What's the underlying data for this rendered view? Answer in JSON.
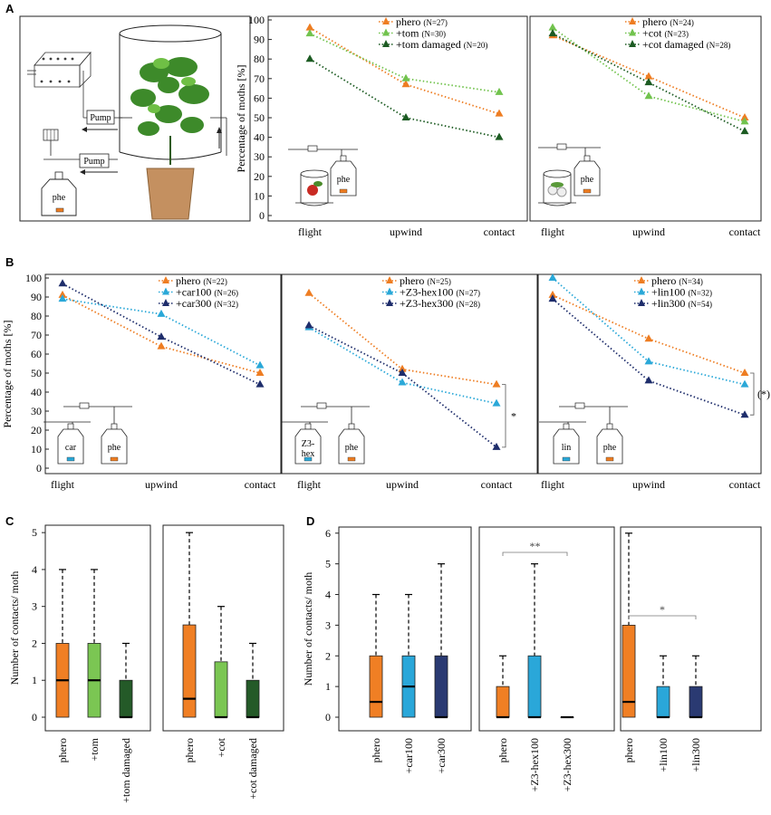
{
  "panel_labels": {
    "a": "A",
    "b": "B",
    "c": "C",
    "d": "D"
  },
  "y_label_percent": "Percentage of moths [%]",
  "y_label_contacts": "Number of contacts/ moth",
  "colors": {
    "orange": "#ee7d22",
    "light_green": "#72c34e",
    "dark_green": "#1c5b22",
    "light_blue": "#2aa8d8",
    "navy": "#1e2d6b",
    "box_orange": "#f07f24",
    "box_lgreen": "#7bc653",
    "box_dgreen": "#245a28",
    "box_lblue": "#2aa7d9",
    "box_navy": "#2a3a72"
  },
  "diagram": {
    "pump1": "Pump",
    "pump2": "Pump",
    "bottle_label": "phe"
  },
  "insets": {
    "phe": "phe",
    "car": "car",
    "z3hex_line1": "Z3-",
    "z3hex_line2": "hex",
    "lin": "lin"
  },
  "chart_data": [
    {
      "id": "A1",
      "type": "line",
      "categories": [
        "flight",
        "upwind",
        "contact"
      ],
      "ylim": [
        0,
        100
      ],
      "ticks": [
        0,
        10,
        20,
        30,
        40,
        50,
        60,
        70,
        80,
        90,
        100
      ],
      "ylabel": "Percentage of moths [%]",
      "series": [
        {
          "name": "phero",
          "n": "(N=27)",
          "color": "#ee7d22",
          "values": [
            96,
            67,
            52
          ]
        },
        {
          "name": "+tom",
          "n": "(N=30)",
          "color": "#72c34e",
          "values": [
            93,
            70,
            63
          ]
        },
        {
          "name": "+tom damaged",
          "n": "(N=20)",
          "color": "#1c5b22",
          "values": [
            80,
            50,
            40
          ]
        }
      ]
    },
    {
      "id": "A2",
      "type": "line",
      "categories": [
        "flight",
        "upwind",
        "contact"
      ],
      "ylim": [
        0,
        100
      ],
      "series": [
        {
          "name": "phero",
          "n": "(N=24)",
          "color": "#ee7d22",
          "values": [
            92,
            71,
            50
          ]
        },
        {
          "name": "+cot",
          "n": "(N=23)",
          "color": "#72c34e",
          "values": [
            96,
            61,
            48
          ]
        },
        {
          "name": "+cot damaged",
          "n": "(N=28)",
          "color": "#1c5b22",
          "values": [
            93,
            68,
            43
          ]
        }
      ]
    },
    {
      "id": "B1",
      "type": "line",
      "categories": [
        "flight",
        "upwind",
        "contact"
      ],
      "ylim": [
        0,
        100
      ],
      "ticks": [
        0,
        10,
        20,
        30,
        40,
        50,
        60,
        70,
        80,
        90,
        100
      ],
      "ylabel": "Percentage of moths [%]",
      "series": [
        {
          "name": "phero",
          "n": "(N=22)",
          "color": "#ee7d22",
          "values": [
            91,
            64,
            50
          ]
        },
        {
          "name": "+car100",
          "n": "(N=26)",
          "color": "#2aa8d8",
          "values": [
            89,
            81,
            54
          ]
        },
        {
          "name": "+car300",
          "n": "(N=32)",
          "color": "#1e2d6b",
          "values": [
            97,
            69,
            44
          ]
        }
      ]
    },
    {
      "id": "B2",
      "type": "line",
      "categories": [
        "flight",
        "upwind",
        "contact"
      ],
      "ylim": [
        0,
        100
      ],
      "annotation": "*",
      "series": [
        {
          "name": "phero",
          "n": "(N=25)",
          "color": "#ee7d22",
          "values": [
            92,
            52,
            44
          ]
        },
        {
          "name": "+Z3-hex100",
          "n": "(N=27)",
          "color": "#2aa8d8",
          "values": [
            74,
            45,
            34
          ]
        },
        {
          "name": "+Z3-hex300",
          "n": "(N=28)",
          "color": "#1e2d6b",
          "values": [
            75,
            50,
            11
          ]
        }
      ]
    },
    {
      "id": "B3",
      "type": "line",
      "categories": [
        "flight",
        "upwind",
        "contact"
      ],
      "ylim": [
        0,
        100
      ],
      "annotation": "(*)",
      "series": [
        {
          "name": "phero",
          "n": "(N=34)",
          "color": "#ee7d22",
          "values": [
            91,
            68,
            50
          ]
        },
        {
          "name": "+lin100",
          "n": "(N=32)",
          "color": "#2aa8d8",
          "values": [
            100,
            56,
            44
          ]
        },
        {
          "name": "+lin300",
          "n": "(N=54)",
          "color": "#1e2d6b",
          "values": [
            89,
            46,
            28
          ]
        }
      ]
    },
    {
      "id": "C1",
      "type": "box",
      "ylim": [
        0,
        5.2
      ],
      "ticks": [
        0,
        1,
        2,
        3,
        4,
        5
      ],
      "ylabel": "Number of contacts/ moth",
      "boxes": [
        {
          "label": "phero",
          "color": "#f07f24",
          "min": 0,
          "q1": 0,
          "median": 1,
          "q3": 2,
          "max": 4
        },
        {
          "label": "+tom",
          "color": "#7bc653",
          "min": 0,
          "q1": 0,
          "median": 1,
          "q3": 2,
          "max": 4
        },
        {
          "label": "+tom damaged",
          "color": "#245a28",
          "min": 0,
          "q1": 0,
          "median": 0,
          "q3": 1,
          "max": 2
        }
      ]
    },
    {
      "id": "C2",
      "type": "box",
      "ylim": [
        0,
        5.2
      ],
      "boxes": [
        {
          "label": "phero",
          "color": "#f07f24",
          "min": 0,
          "q1": 0,
          "median": 0.5,
          "q3": 2.5,
          "max": 5
        },
        {
          "label": "+cot",
          "color": "#7bc653",
          "min": 0,
          "q1": 0,
          "median": 0,
          "q3": 1.5,
          "max": 3
        },
        {
          "label": "+cot damaged",
          "color": "#245a28",
          "min": 0,
          "q1": 0,
          "median": 0,
          "q3": 1,
          "max": 2
        }
      ]
    },
    {
      "id": "D1",
      "type": "box",
      "ylim": [
        0,
        6.2
      ],
      "ticks": [
        0,
        1,
        2,
        3,
        4,
        5,
        6
      ],
      "ylabel": "Number of contacts/ moth",
      "boxes": [
        {
          "label": "phero",
          "color": "#f07f24",
          "min": 0,
          "q1": 0,
          "median": 0.5,
          "q3": 2,
          "max": 4
        },
        {
          "label": "+car100",
          "color": "#2aa7d9",
          "min": 0,
          "q1": 0,
          "median": 1,
          "q3": 2,
          "max": 4
        },
        {
          "label": "+car300",
          "color": "#2a3a72",
          "min": 0,
          "q1": 0,
          "median": 0,
          "q3": 2,
          "max": 5
        }
      ]
    },
    {
      "id": "D2",
      "type": "box",
      "ylim": [
        0,
        6.2
      ],
      "annotation": "**",
      "boxes": [
        {
          "label": "phero",
          "color": "#f07f24",
          "min": 0,
          "q1": 0,
          "median": 0,
          "q3": 1,
          "max": 2
        },
        {
          "label": "+Z3-hex100",
          "color": "#2aa7d9",
          "min": 0,
          "q1": 0,
          "median": 0,
          "q3": 2,
          "max": 5
        },
        {
          "label": "+Z3-hex300",
          "color": "#2a3a72",
          "min": 0,
          "q1": 0,
          "median": 0,
          "q3": 0,
          "max": 0
        }
      ]
    },
    {
      "id": "D3",
      "type": "box",
      "ylim": [
        0,
        6.2
      ],
      "annotation": "*",
      "boxes": [
        {
          "label": "phero",
          "color": "#f07f24",
          "min": 0,
          "q1": 0,
          "median": 0.5,
          "q3": 3,
          "max": 6
        },
        {
          "label": "+lin100",
          "color": "#2aa7d9",
          "min": 0,
          "q1": 0,
          "median": 0,
          "q3": 1,
          "max": 2
        },
        {
          "label": "+lin300",
          "color": "#2a3a72",
          "min": 0,
          "q1": 0,
          "median": 0,
          "q3": 1,
          "max": 2
        }
      ]
    }
  ]
}
